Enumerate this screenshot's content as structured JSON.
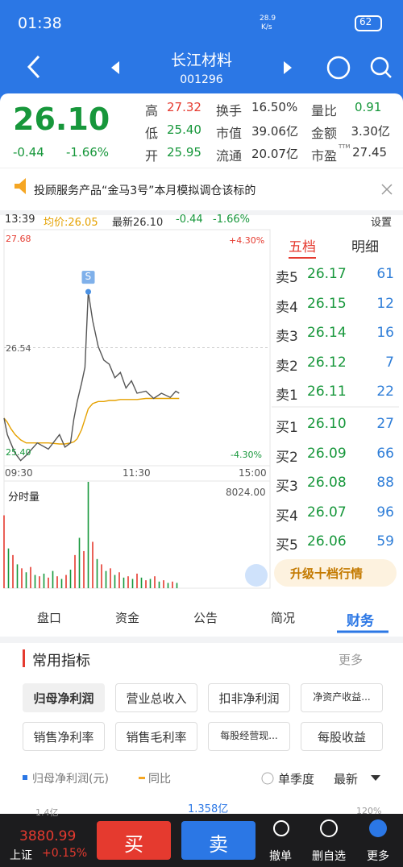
{
  "status_bar": {
    "time": "01:38",
    "speed": "28.9",
    "speed_unit": "K/s",
    "battery": "62"
  },
  "header": {
    "title": "长江材料",
    "code": "001296"
  },
  "quote": {
    "price": "26.10",
    "change": "-0.44",
    "change_pct": "-1.66%",
    "fields": [
      [
        "高",
        "27.32"
      ],
      [
        "换手",
        "16.50%"
      ],
      [
        "量比",
        "0.91"
      ],
      [
        "低",
        "25.40"
      ],
      [
        "市值",
        "39.06亿"
      ],
      [
        "金额",
        "3.30亿"
      ],
      [
        "开",
        "25.95"
      ],
      [
        "流通",
        "20.07亿"
      ],
      [
        "市盈",
        "27.45"
      ]
    ],
    "ttm": "TTM"
  },
  "notice": {
    "text": "投顾服务产品“金马3号”本月模拟调仓该标的"
  },
  "chart_header": {
    "time": "13:39",
    "avg": "均价:26.05",
    "latest": "最新26.10",
    "change": "-0.44",
    "change_pct": "-1.66%",
    "settings": "设置"
  },
  "intraday": {
    "xlim": [
      0,
      240
    ],
    "ylim": [
      25.4,
      27.68
    ],
    "yticks": [
      {
        "value": 27.68,
        "label": "27.68"
      },
      {
        "value": 26.54,
        "label": "26.54"
      },
      {
        "value": 25.4,
        "label": "25.40"
      }
    ],
    "pct_labels": [
      "+4.30%",
      "-4.30%"
    ],
    "time_labels": [
      "09:30",
      "11:30",
      "15:00"
    ],
    "marker": "S",
    "minutes": [
      0,
      3,
      6,
      10,
      15,
      20,
      30,
      40,
      50,
      55,
      60,
      63,
      66,
      70,
      73,
      76,
      80,
      85,
      90,
      95,
      100,
      105,
      110,
      115,
      120,
      128,
      135,
      142,
      150,
      155,
      158
    ],
    "price": [
      25.86,
      25.7,
      25.62,
      25.52,
      25.45,
      25.5,
      25.62,
      25.56,
      25.7,
      25.58,
      25.62,
      25.85,
      26.02,
      26.2,
      26.35,
      27.08,
      26.8,
      26.55,
      26.42,
      26.38,
      26.25,
      26.3,
      26.15,
      26.22,
      26.1,
      26.12,
      26.05,
      26.1,
      26.06,
      26.12,
      26.1
    ],
    "avg": [
      25.86,
      25.82,
      25.76,
      25.7,
      25.65,
      25.62,
      25.62,
      25.62,
      25.61,
      25.61,
      25.62,
      25.63,
      25.66,
      25.75,
      25.85,
      25.95,
      26.0,
      26.02,
      26.02,
      26.03,
      26.03,
      26.04,
      26.04,
      26.04,
      26.04,
      26.05,
      26.05,
      26.05,
      26.05,
      26.05,
      26.05
    ],
    "volume": {
      "label": "分时量",
      "ylim": [
        0,
        8024
      ],
      "max_label": "8024.00",
      "minutes": [
        0,
        4,
        8,
        12,
        16,
        20,
        24,
        28,
        32,
        36,
        40,
        44,
        48,
        52,
        56,
        60,
        64,
        68,
        72,
        76,
        80,
        84,
        88,
        92,
        96,
        100,
        104,
        108,
        112,
        116,
        120,
        124,
        128,
        132,
        136,
        140,
        144,
        148,
        152,
        156
      ],
      "values": [
        5500,
        3000,
        2500,
        1800,
        1500,
        1200,
        1600,
        1000,
        900,
        1100,
        800,
        1300,
        900,
        700,
        1000,
        1400,
        2500,
        3800,
        2800,
        8024,
        3500,
        2200,
        1800,
        1300,
        1500,
        1000,
        1200,
        800,
        900,
        700,
        1100,
        800,
        600,
        700,
        900,
        500,
        600,
        400,
        500,
        400
      ]
    }
  },
  "order_book": {
    "tabs": [
      "五档",
      "明细"
    ],
    "rows": [
      [
        "卖5",
        "26.17",
        "61"
      ],
      [
        "卖4",
        "26.15",
        "12"
      ],
      [
        "卖3",
        "26.14",
        "16"
      ],
      [
        "卖2",
        "26.12",
        "7"
      ],
      [
        "卖1",
        "26.11",
        "22"
      ],
      [
        "买1",
        "26.10",
        "27"
      ],
      [
        "买2",
        "26.09",
        "66"
      ],
      [
        "买3",
        "26.08",
        "88"
      ],
      [
        "买4",
        "26.07",
        "96"
      ],
      [
        "买5",
        "26.06",
        "59"
      ]
    ],
    "upgrade": "升级十档行情"
  },
  "tabs": [
    "盘口",
    "资金",
    "公告",
    "简况",
    "财务"
  ],
  "indicators": {
    "title": "常用指标",
    "more": "更多",
    "chips": [
      "归母净利润",
      "营业总收入",
      "扣非净利润",
      "净资产收益...",
      "销售净利率",
      "销售毛利率",
      "每股经营现...",
      "每股收益"
    ],
    "legend": [
      "归母净利润(元)",
      "同比"
    ],
    "quarter": "单季度",
    "latest": "最新",
    "axis_labels": [
      "1.4亿",
      "1.358亿",
      "120%"
    ]
  },
  "footer": {
    "index_value": "3880.99",
    "index_name": "上证",
    "index_change": "+0.15%",
    "buy": "买",
    "sell": "卖",
    "actions": [
      "撤单",
      "删自选",
      "更多"
    ]
  }
}
